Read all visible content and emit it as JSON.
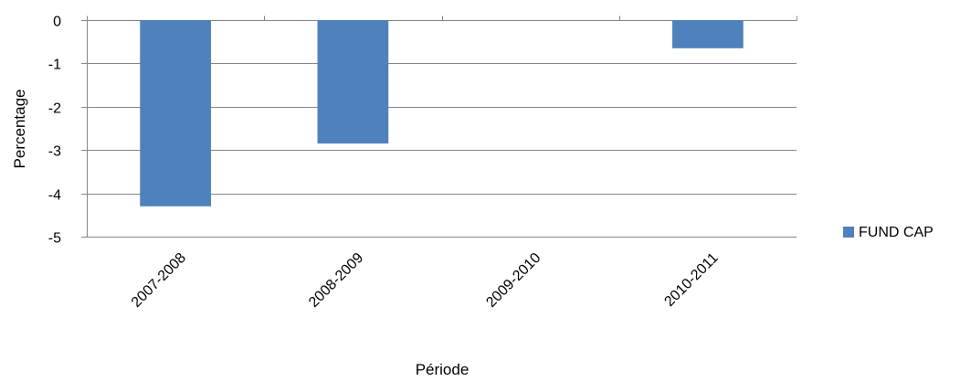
{
  "chart_data": {
    "type": "bar",
    "title": "",
    "xlabel": "Période",
    "ylabel": "Percentage",
    "categories": [
      "2007-2008",
      "2008-2009",
      "2009-2010",
      "2010-2011"
    ],
    "series": [
      {
        "name": "FUND CAP",
        "color": "#4F81BD",
        "values": [
          -4.3,
          -2.85,
          0,
          -0.65
        ]
      }
    ],
    "ylim": [
      -5,
      0
    ],
    "yticks": [
      "0",
      "-1",
      "-2",
      "-3",
      "-4",
      "-5"
    ],
    "grid": true,
    "legend_position": "right"
  }
}
